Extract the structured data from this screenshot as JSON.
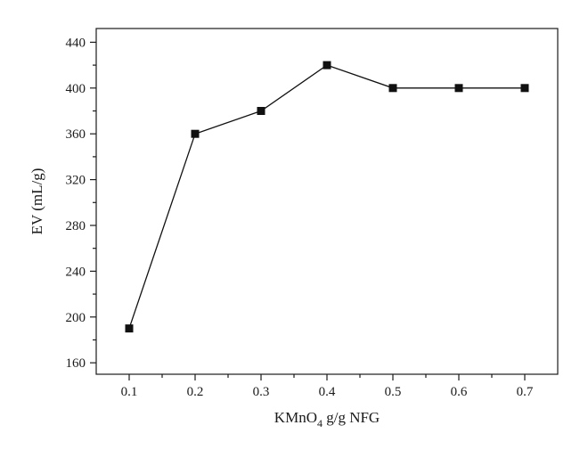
{
  "chart_data": {
    "type": "line",
    "title": "",
    "xlabel": "KMnO4 g/g NFG",
    "xlabel_parts": {
      "before_sub": "KMnO",
      "sub": "4",
      "after_sub": " g/g NFG"
    },
    "ylabel": "EV (mL/g)",
    "xlim": [
      0.05,
      0.75
    ],
    "ylim": [
      150,
      452
    ],
    "x_ticks": [
      "0.1",
      "0.2",
      "0.3",
      "0.4",
      "0.5",
      "0.6",
      "0.7"
    ],
    "y_ticks": [
      "160",
      "200",
      "240",
      "280",
      "320",
      "360",
      "400",
      "440"
    ],
    "grid": false,
    "marker": "square",
    "colors": {
      "line": "#111111",
      "marker": "#111111",
      "axis": "#1a1a1a"
    },
    "series": [
      {
        "x": [
          0.1,
          0.2,
          0.3,
          0.4,
          0.5,
          0.6,
          0.7
        ],
        "y": [
          190,
          360,
          380,
          420,
          400,
          400,
          400
        ]
      }
    ]
  }
}
